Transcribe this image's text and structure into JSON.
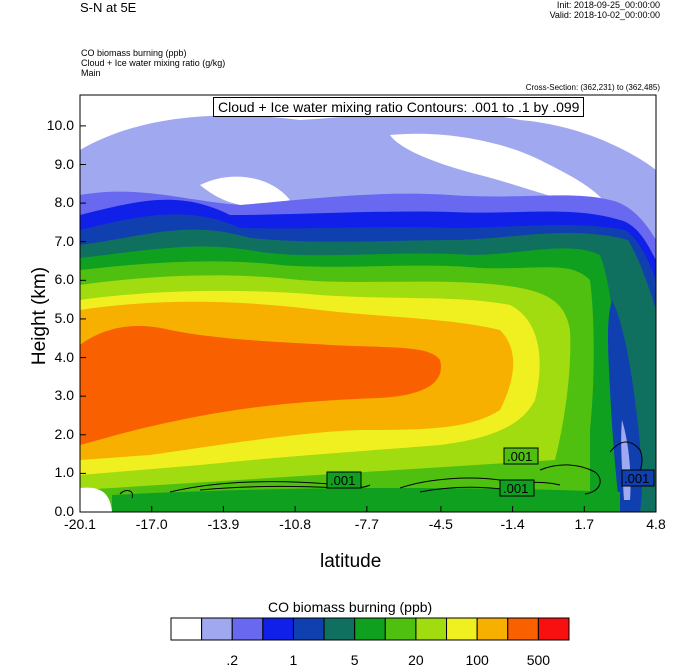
{
  "header": {
    "title": "S-N at 5E",
    "init": "Init: 2018-09-25_00:00:00",
    "valid": "Valid: 2018-10-02_00:00:00",
    "field1": "CO biomass burning   (ppb)",
    "field2": "Cloud + Ice water mixing ratio   (g/kg)",
    "field3": "Main",
    "cross_section": "Cross-Section: (362,231) to (362,485)",
    "contour_info": "Cloud + Ice water mixing ratio Contours: .001 to .1 by .099"
  },
  "chart_data": {
    "type": "heatmap",
    "xlabel": "latitude",
    "ylabel": "Height (km)",
    "xlim": [
      -20.1,
      4.8
    ],
    "ylim": [
      0.0,
      10.8
    ],
    "x_ticks": [
      "-20.1",
      "-17.0",
      "-13.9",
      "-10.8",
      "-7.7",
      "-4.5",
      "-1.4",
      "1.7",
      "4.8"
    ],
    "x_tick_values": [
      -20.1,
      -17.0,
      -13.9,
      -10.8,
      -7.7,
      -4.5,
      -1.4,
      1.7,
      4.8
    ],
    "y_ticks": [
      "0.0",
      "1.0",
      "2.0",
      "3.0",
      "4.0",
      "5.0",
      "6.0",
      "7.0",
      "8.0",
      "9.0",
      "10.0"
    ],
    "y_tick_values": [
      0,
      1,
      2,
      3,
      4,
      5,
      6,
      7,
      8,
      9,
      10
    ],
    "contour_labels": [
      ".001",
      ".001",
      ".001",
      ".001"
    ],
    "colorbar": {
      "title": "CO biomass burning  (ppb)",
      "labels": [
        ".2",
        "1",
        "5",
        "20",
        "100",
        "500"
      ],
      "colors": [
        "#ffffff",
        "#a0a8f0",
        "#6868f0",
        "#1020e8",
        "#1040b0",
        "#107060",
        "#10a020",
        "#50c010",
        "#a0dc10",
        "#f0f020",
        "#f8b000",
        "#f86000",
        "#f81010"
      ]
    }
  }
}
